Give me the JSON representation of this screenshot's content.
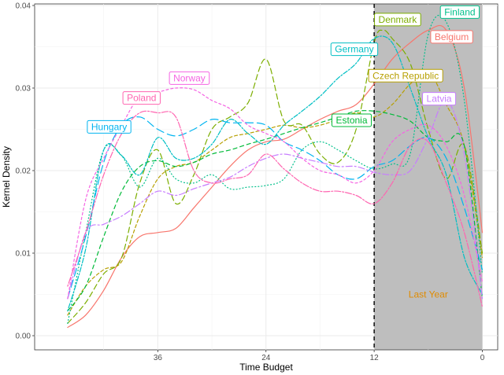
{
  "chart_data": {
    "type": "line",
    "xlabel": "Time Budget",
    "ylabel": "Kernel Density",
    "x_reversed": true,
    "xlim": [
      48,
      0
    ],
    "ylim": [
      0,
      0.04
    ],
    "x_ticks": [
      36,
      24,
      12,
      0
    ],
    "y_ticks": [
      0,
      0.01,
      0.02,
      0.03,
      0.04
    ],
    "y_tick_labels": [
      "0.00",
      "0.01",
      "0.02",
      "0.03",
      "0.04"
    ],
    "grid": true,
    "legend": "none",
    "vline": {
      "x": 12,
      "style": "dashed"
    },
    "shaded_region": {
      "x": [
        12,
        0
      ],
      "label": "Last Year",
      "label_color": "#E08B00",
      "fill": "#bebebe"
    },
    "series": [
      {
        "name": "Belgium",
        "color": "#F8766D",
        "dash": "solid",
        "label": {
          "x": 3.4,
          "y": 0.0362
        },
        "points": [
          [
            46,
            0.001
          ],
          [
            44,
            0.0025
          ],
          [
            42,
            0.0055
          ],
          [
            40,
            0.0095
          ],
          [
            38,
            0.012
          ],
          [
            36,
            0.0125
          ],
          [
            34,
            0.013
          ],
          [
            32,
            0.0155
          ],
          [
            30,
            0.018
          ],
          [
            28,
            0.0205
          ],
          [
            26,
            0.0225
          ],
          [
            24,
            0.0235
          ],
          [
            22,
            0.0238
          ],
          [
            20,
            0.025
          ],
          [
            18,
            0.0262
          ],
          [
            16,
            0.0272
          ],
          [
            14,
            0.028
          ],
          [
            12,
            0.0305
          ],
          [
            10,
            0.0335
          ],
          [
            8,
            0.0355
          ],
          [
            6,
            0.037
          ],
          [
            4,
            0.037
          ],
          [
            2,
            0.03
          ],
          [
            0,
            0.0125
          ]
        ]
      },
      {
        "name": "Czech Republic",
        "color": "#B79F00",
        "dash": "4,3",
        "label": {
          "x": 8.5,
          "y": 0.0315
        },
        "points": [
          [
            46,
            0.0025
          ],
          [
            44,
            0.006
          ],
          [
            42,
            0.008
          ],
          [
            40,
            0.009
          ],
          [
            38,
            0.0145
          ],
          [
            36,
            0.019
          ],
          [
            34,
            0.0205
          ],
          [
            32,
            0.021
          ],
          [
            30,
            0.0225
          ],
          [
            28,
            0.024
          ],
          [
            26,
            0.0245
          ],
          [
            24,
            0.025
          ],
          [
            22,
            0.0255
          ],
          [
            20,
            0.0252
          ],
          [
            18,
            0.0255
          ],
          [
            16,
            0.0262
          ],
          [
            14,
            0.027
          ],
          [
            12,
            0.0265
          ],
          [
            10,
            0.028
          ],
          [
            8,
            0.0305
          ],
          [
            6,
            0.032
          ],
          [
            4,
            0.028
          ],
          [
            2,
            0.023
          ],
          [
            0,
            0.0095
          ]
        ]
      },
      {
        "name": "Denmark",
        "color": "#7CAE00",
        "dash": "7,4",
        "label": {
          "x": 9.4,
          "y": 0.0383
        },
        "points": [
          [
            46,
            0.0015
          ],
          [
            44,
            0.004
          ],
          [
            42,
            0.0075
          ],
          [
            40,
            0.0095
          ],
          [
            38,
            0.0185
          ],
          [
            36,
            0.0225
          ],
          [
            34,
            0.016
          ],
          [
            32,
            0.0195
          ],
          [
            30,
            0.025
          ],
          [
            28,
            0.0265
          ],
          [
            26,
            0.0282
          ],
          [
            24,
            0.0335
          ],
          [
            22,
            0.026
          ],
          [
            20,
            0.0255
          ],
          [
            18,
            0.022
          ],
          [
            16,
            0.021
          ],
          [
            14,
            0.025
          ],
          [
            12,
            0.0355
          ],
          [
            11,
            0.037
          ],
          [
            10,
            0.036
          ],
          [
            8,
            0.033
          ],
          [
            6,
            0.025
          ],
          [
            4,
            0.019
          ],
          [
            2,
            0.023
          ],
          [
            0,
            0.01
          ]
        ]
      },
      {
        "name": "Estonia",
        "color": "#00BA38",
        "dash": "5,4",
        "label": {
          "x": 14.5,
          "y": 0.0261
        },
        "points": [
          [
            46,
            0.003
          ],
          [
            44,
            0.006
          ],
          [
            42,
            0.012
          ],
          [
            40,
            0.0175
          ],
          [
            38,
            0.0205
          ],
          [
            36,
            0.0212
          ],
          [
            34,
            0.0205
          ],
          [
            32,
            0.021
          ],
          [
            30,
            0.022
          ],
          [
            28,
            0.0225
          ],
          [
            26,
            0.0232
          ],
          [
            24,
            0.0238
          ],
          [
            22,
            0.0245
          ],
          [
            20,
            0.0252
          ],
          [
            18,
            0.0258
          ],
          [
            16,
            0.0265
          ],
          [
            14,
            0.0272
          ],
          [
            12,
            0.0272
          ],
          [
            10,
            0.0268
          ],
          [
            8,
            0.026
          ],
          [
            6,
            0.024
          ],
          [
            4,
            0.0235
          ],
          [
            2,
            0.023
          ],
          [
            0,
            0.0045
          ]
        ]
      },
      {
        "name": "Finland",
        "color": "#00C08B",
        "dash": "1,3",
        "label": {
          "x": 2.5,
          "y": 0.0392
        },
        "points": [
          [
            46,
            0.0015
          ],
          [
            44,
            0.0125
          ],
          [
            42,
            0.0225
          ],
          [
            40,
            0.0218
          ],
          [
            38,
            0.018
          ],
          [
            36,
            0.0215
          ],
          [
            34,
            0.019
          ],
          [
            32,
            0.0185
          ],
          [
            30,
            0.0195
          ],
          [
            28,
            0.0178
          ],
          [
            26,
            0.018
          ],
          [
            24,
            0.0182
          ],
          [
            22,
            0.019
          ],
          [
            20,
            0.0225
          ],
          [
            18,
            0.0235
          ],
          [
            16,
            0.0225
          ],
          [
            14,
            0.0212
          ],
          [
            12,
            0.0202
          ],
          [
            10,
            0.0208
          ],
          [
            8,
            0.022
          ],
          [
            6,
            0.0365
          ],
          [
            4,
            0.038
          ],
          [
            2,
            0.0285
          ],
          [
            0,
            0.0075
          ]
        ]
      },
      {
        "name": "Germany",
        "color": "#00BFC4",
        "dash": "2,2,6,2",
        "label": {
          "x": 14.2,
          "y": 0.0347
        },
        "points": [
          [
            46,
            0.003
          ],
          [
            44,
            0.0105
          ],
          [
            42,
            0.0225
          ],
          [
            40,
            0.0218
          ],
          [
            38,
            0.0195
          ],
          [
            36,
            0.024
          ],
          [
            34,
            0.0215
          ],
          [
            32,
            0.0215
          ],
          [
            30,
            0.0232
          ],
          [
            28,
            0.0262
          ],
          [
            26,
            0.0245
          ],
          [
            24,
            0.0232
          ],
          [
            22,
            0.0255
          ],
          [
            20,
            0.0272
          ],
          [
            18,
            0.029
          ],
          [
            16,
            0.0312
          ],
          [
            14,
            0.033
          ],
          [
            12,
            0.036
          ],
          [
            10,
            0.0355
          ],
          [
            8,
            0.03
          ],
          [
            6,
            0.024
          ],
          [
            4,
            0.0195
          ],
          [
            2,
            0.0095
          ],
          [
            0,
            0.005
          ]
        ]
      },
      {
        "name": "Hungary",
        "color": "#00B4F0",
        "dash": "10,5",
        "label": {
          "x": 41.4,
          "y": 0.0253
        },
        "points": [
          [
            46,
            0.0045
          ],
          [
            44,
            0.012
          ],
          [
            42,
            0.021
          ],
          [
            40,
            0.0255
          ],
          [
            38,
            0.0265
          ],
          [
            36,
            0.025
          ],
          [
            34,
            0.0242
          ],
          [
            32,
            0.025
          ],
          [
            30,
            0.0262
          ],
          [
            28,
            0.0258
          ],
          [
            26,
            0.0258
          ],
          [
            24,
            0.0255
          ],
          [
            22,
            0.0235
          ],
          [
            20,
            0.0225
          ],
          [
            18,
            0.0212
          ],
          [
            16,
            0.0195
          ],
          [
            14,
            0.019
          ],
          [
            12,
            0.0205
          ],
          [
            10,
            0.0212
          ],
          [
            8,
            0.023
          ],
          [
            6,
            0.024
          ],
          [
            4,
            0.0215
          ],
          [
            2,
            0.0155
          ],
          [
            0,
            0.008
          ]
        ]
      },
      {
        "name": "Latvia",
        "color": "#C77CFF",
        "dash": "8,3,2,3",
        "label": {
          "x": 4.8,
          "y": 0.0287
        },
        "points": [
          [
            46,
            0.0045
          ],
          [
            44,
            0.0125
          ],
          [
            42,
            0.0135
          ],
          [
            40,
            0.0145
          ],
          [
            38,
            0.016
          ],
          [
            36,
            0.0175
          ],
          [
            34,
            0.017
          ],
          [
            32,
            0.0178
          ],
          [
            30,
            0.0185
          ],
          [
            28,
            0.0192
          ],
          [
            26,
            0.0205
          ],
          [
            24,
            0.0215
          ],
          [
            22,
            0.022
          ],
          [
            20,
            0.0215
          ],
          [
            18,
            0.021
          ],
          [
            16,
            0.0205
          ],
          [
            14,
            0.0205
          ],
          [
            12,
            0.0198
          ],
          [
            10,
            0.0195
          ],
          [
            8,
            0.02
          ],
          [
            6,
            0.024
          ],
          [
            4,
            0.0285
          ],
          [
            2,
            0.022
          ],
          [
            0,
            0.0045
          ]
        ]
      },
      {
        "name": "Norway",
        "color": "#F564E3",
        "dash": "3,3",
        "label": {
          "x": 32.5,
          "y": 0.0312
        },
        "points": [
          [
            46,
            0.0045
          ],
          [
            44,
            0.0165
          ],
          [
            42,
            0.0215
          ],
          [
            40,
            0.0255
          ],
          [
            38,
            0.029
          ],
          [
            36,
            0.0295
          ],
          [
            34,
            0.03
          ],
          [
            32,
            0.0298
          ],
          [
            30,
            0.0285
          ],
          [
            28,
            0.0275
          ],
          [
            26,
            0.0255
          ],
          [
            24,
            0.0245
          ],
          [
            22,
            0.0235
          ],
          [
            20,
            0.0215
          ],
          [
            18,
            0.02
          ],
          [
            16,
            0.0195
          ],
          [
            14,
            0.0185
          ],
          [
            12,
            0.02
          ],
          [
            10,
            0.0235
          ],
          [
            8,
            0.025
          ],
          [
            6,
            0.0255
          ],
          [
            4,
            0.023
          ],
          [
            2,
            0.017
          ],
          [
            0,
            0.0065
          ]
        ]
      },
      {
        "name": "Poland",
        "color": "#FF64B0",
        "dash": "2,2,8,2",
        "label": {
          "x": 37.8,
          "y": 0.0288
        },
        "points": [
          [
            46,
            0.006
          ],
          [
            44,
            0.0125
          ],
          [
            42,
            0.0195
          ],
          [
            40,
            0.0245
          ],
          [
            38,
            0.027
          ],
          [
            36,
            0.027
          ],
          [
            34,
            0.0265
          ],
          [
            32,
            0.02
          ],
          [
            30,
            0.0185
          ],
          [
            28,
            0.019
          ],
          [
            26,
            0.0195
          ],
          [
            24,
            0.022
          ],
          [
            22,
            0.0202
          ],
          [
            20,
            0.0185
          ],
          [
            18,
            0.0175
          ],
          [
            16,
            0.0175
          ],
          [
            14,
            0.017
          ],
          [
            12,
            0.016
          ],
          [
            10,
            0.0185
          ],
          [
            8,
            0.023
          ],
          [
            6,
            0.0235
          ],
          [
            4,
            0.0185
          ],
          [
            2,
            0.0125
          ],
          [
            0,
            0.0035
          ]
        ]
      }
    ]
  }
}
